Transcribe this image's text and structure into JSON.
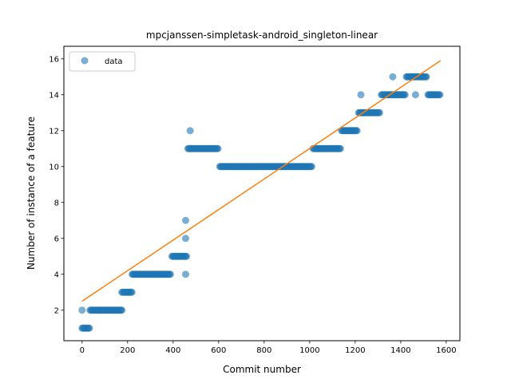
{
  "chart_data": {
    "type": "scatter",
    "title": "mpcjanssen-simpletask-android_singleton-linear",
    "xlabel": "Commit number",
    "ylabel": "Number of instance of a feature",
    "xlim": [
      -80,
      1660
    ],
    "ylim": [
      0.3,
      16.7
    ],
    "xticks": [
      0,
      200,
      400,
      600,
      800,
      1000,
      1200,
      1400,
      1600
    ],
    "yticks": [
      2,
      4,
      6,
      8,
      10,
      12,
      14,
      16
    ],
    "legend": {
      "entries": [
        "data"
      ],
      "placement": "top-left"
    },
    "colors": {
      "data": "#1f77b4",
      "fit": "#ff7f0e"
    },
    "grid": false,
    "series": [
      {
        "name": "data",
        "kind": "points",
        "segments": [
          {
            "x_start": 0,
            "x_end": 35,
            "y": 1
          },
          {
            "x_start": 35,
            "x_end": 175,
            "y": 2
          },
          {
            "x_start": 175,
            "x_end": 220,
            "y": 3
          },
          {
            "x_start": 220,
            "x_end": 390,
            "y": 4
          },
          {
            "x_start": 395,
            "x_end": 460,
            "y": 5
          },
          {
            "x_start": 465,
            "x_end": 600,
            "y": 11
          },
          {
            "x_start": 605,
            "x_end": 1010,
            "y": 10
          },
          {
            "x_start": 1015,
            "x_end": 1135,
            "y": 11
          },
          {
            "x_start": 1140,
            "x_end": 1210,
            "y": 12
          },
          {
            "x_start": 1215,
            "x_end": 1310,
            "y": 13
          },
          {
            "x_start": 1315,
            "x_end": 1420,
            "y": 14
          },
          {
            "x_start": 1425,
            "x_end": 1515,
            "y": 15
          },
          {
            "x_start": 1520,
            "x_end": 1575,
            "y": 14
          }
        ],
        "points": [
          {
            "x": 0,
            "y": 2
          },
          {
            "x": 455,
            "y": 7
          },
          {
            "x": 455,
            "y": 6
          },
          {
            "x": 455,
            "y": 4
          },
          {
            "x": 475,
            "y": 12
          },
          {
            "x": 1225,
            "y": 14
          },
          {
            "x": 1365,
            "y": 15
          },
          {
            "x": 1465,
            "y": 14
          }
        ]
      },
      {
        "name": "",
        "kind": "line",
        "x": [
          0,
          1575
        ],
        "y": [
          2.5,
          15.9
        ]
      }
    ]
  }
}
